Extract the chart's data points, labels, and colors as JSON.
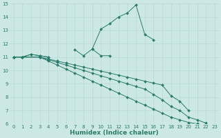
{
  "xlabel": "Humidex (Indice chaleur)",
  "xlim": [
    -0.5,
    23.5
  ],
  "ylim": [
    6,
    15
  ],
  "xticks": [
    0,
    1,
    2,
    3,
    4,
    5,
    6,
    7,
    8,
    9,
    10,
    11,
    12,
    13,
    14,
    15,
    16,
    17,
    18,
    19,
    20,
    21,
    22,
    23
  ],
  "yticks": [
    6,
    7,
    8,
    9,
    10,
    11,
    12,
    13,
    14,
    15
  ],
  "bg_color": "#cce8e4",
  "line_color": "#2a7a6a",
  "lines": [
    {
      "x": [
        0,
        1,
        2,
        3,
        4,
        5,
        6,
        7,
        8,
        9,
        10,
        11,
        12,
        13,
        14,
        15,
        16,
        17,
        18
      ],
      "y": [
        11.0,
        11.0,
        11.2,
        11.1,
        11.0,
        null,
        null,
        null,
        null,
        11.6,
        13.1,
        13.5,
        14.0,
        14.3,
        14.9,
        12.7,
        12.3,
        null,
        null
      ]
    },
    {
      "x": [
        0,
        1,
        2,
        3,
        4,
        5,
        6,
        7,
        8,
        9,
        10,
        11
      ],
      "y": [
        11.0,
        11.0,
        11.2,
        11.1,
        11.0,
        null,
        null,
        11.55,
        11.1,
        11.6,
        11.1,
        11.1
      ]
    },
    {
      "x": [
        0,
        1,
        3,
        4,
        5,
        6,
        7,
        8,
        9,
        10,
        11,
        12,
        13,
        14,
        15,
        16,
        17,
        18,
        19,
        20,
        21,
        22,
        23
      ],
      "y": [
        11.0,
        11.0,
        11.0,
        10.85,
        10.7,
        10.55,
        10.4,
        10.25,
        10.1,
        9.95,
        9.8,
        9.65,
        9.5,
        9.35,
        9.2,
        9.05,
        8.9,
        8.1,
        7.7,
        7.0,
        null,
        null,
        null
      ]
    },
    {
      "x": [
        0,
        1,
        3,
        4,
        5,
        6,
        7,
        8,
        9,
        10,
        11,
        12,
        13,
        14,
        15,
        16,
        17,
        18,
        19,
        20,
        21,
        22,
        23
      ],
      "y": [
        11.0,
        11.0,
        11.0,
        10.8,
        10.6,
        10.4,
        10.2,
        10.0,
        9.8,
        9.6,
        9.4,
        9.2,
        9.0,
        8.8,
        8.6,
        8.2,
        7.8,
        7.3,
        7.0,
        6.5,
        6.3,
        6.05,
        null
      ]
    },
    {
      "x": [
        0,
        1,
        3,
        4,
        5,
        6,
        7,
        8,
        9,
        10,
        11,
        12,
        13,
        14,
        15,
        16,
        17,
        18,
        19,
        20,
        21,
        22,
        23
      ],
      "y": [
        11.0,
        11.0,
        11.0,
        10.7,
        10.4,
        10.1,
        9.8,
        9.5,
        9.2,
        8.9,
        8.6,
        8.3,
        8.0,
        7.7,
        7.4,
        7.1,
        6.8,
        6.5,
        6.3,
        6.1,
        6.0,
        5.85,
        5.75
      ]
    }
  ],
  "grid_color": "#b8d8d4",
  "tick_fontsize": 5,
  "xlabel_fontsize": 6.5
}
